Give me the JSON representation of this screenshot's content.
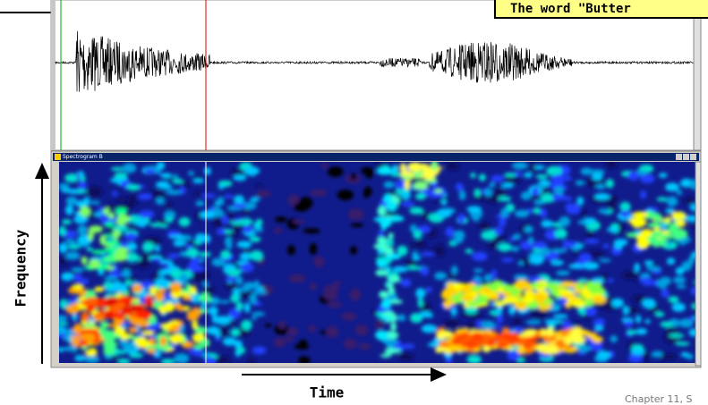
{
  "caption": "The word \"Butter",
  "window_title": "Spectrogram B",
  "y_axis_label": "Frequency",
  "x_axis_label": "Time",
  "footer": "Chapter 11, S"
}
